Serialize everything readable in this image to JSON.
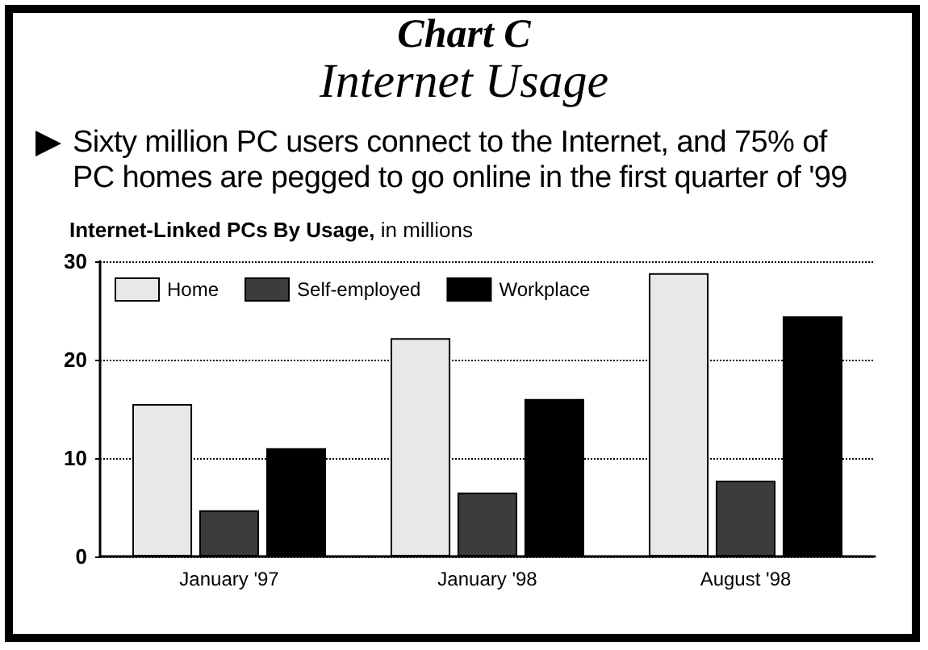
{
  "chart_data": {
    "type": "bar",
    "title": "Chart C",
    "subtitle": "Internet Usage",
    "annotations": [
      "Sixty million PC users connect to the Internet, and 75% of PC homes are pegged to go online in the first quarter of '99"
    ],
    "ylabel": "Internet-Linked PCs By Usage, in millions",
    "categories": [
      "January '97",
      "January '98",
      "August '98"
    ],
    "series": [
      {
        "name": "Home",
        "color": "#e8e8e8",
        "values": [
          15.5,
          22.2,
          28.8
        ]
      },
      {
        "name": "Self-employed",
        "color": "#3c3c3c",
        "values": [
          4.7,
          6.5,
          7.7
        ]
      },
      {
        "name": "Workplace",
        "color": "#000000",
        "values": [
          11,
          16,
          24.4
        ]
      }
    ],
    "ylim": [
      0,
      30
    ],
    "yticks": [
      0,
      10,
      20,
      30
    ],
    "grid": "y",
    "legend": "top left"
  }
}
